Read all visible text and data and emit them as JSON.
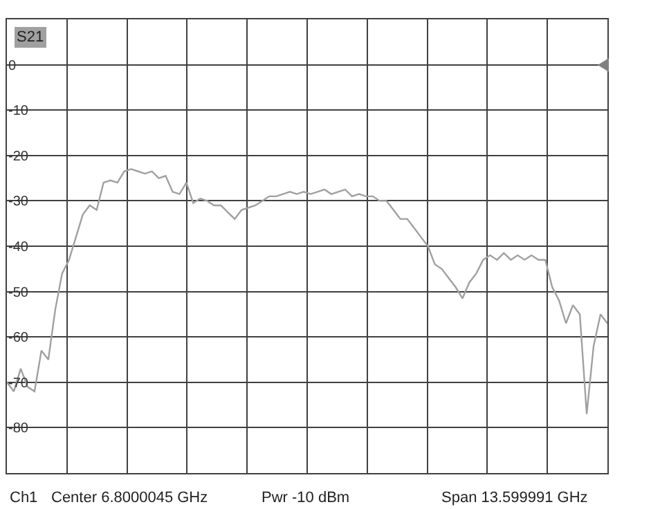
{
  "chart_data": {
    "type": "line",
    "categories": [
      null,
      null,
      null,
      null,
      null,
      null,
      null,
      null,
      null,
      null,
      null,
      null,
      null,
      null,
      null,
      null,
      null,
      null,
      null,
      null,
      null,
      null,
      null,
      null,
      null,
      null,
      null,
      null,
      null,
      null,
      null,
      null,
      null,
      null,
      null,
      null,
      null,
      null,
      null,
      null,
      null,
      null,
      null,
      null,
      null,
      null,
      null,
      null,
      null,
      null,
      null,
      null,
      null,
      null,
      null,
      null,
      null,
      null,
      null,
      null,
      null,
      null,
      null,
      null,
      null,
      null,
      null,
      null,
      null,
      null,
      null,
      null,
      null,
      null,
      null,
      null,
      null,
      null,
      null,
      null,
      null,
      null,
      null,
      null,
      null,
      null,
      null,
      null
    ],
    "series": [
      {
        "name": "S21",
        "color": "#a0a0a0",
        "values": [
          -70,
          -72,
          -67,
          -71,
          -72,
          -63,
          -65,
          -54,
          -46,
          -43,
          -38,
          -33,
          -31,
          -32,
          -26,
          -25.5,
          -26,
          -23.5,
          -23,
          -23.5,
          -24,
          -23.5,
          -25,
          -24.5,
          -28,
          -28.5,
          -26,
          -30.5,
          -29.5,
          -30,
          -31,
          -31,
          -32.5,
          -34,
          -32,
          -31.5,
          -31,
          -30,
          -29,
          -29,
          -28.5,
          -28,
          -28.5,
          -28,
          -28.5,
          -28,
          -27.5,
          -28.5,
          -28,
          -27.5,
          -29,
          -28.5,
          -29,
          -29,
          -30,
          -30,
          -32,
          -34,
          -34,
          -36,
          -38,
          -40,
          -44,
          -45,
          -47,
          -49,
          -51.5,
          -48,
          -46,
          -43,
          -42,
          -43,
          -41.5,
          -43,
          -42,
          -43,
          -42,
          -43,
          -43,
          -49,
          -52,
          -57,
          -53,
          -55,
          -77,
          -62,
          -55,
          -57
        ]
      }
    ],
    "ylim": [
      -90,
      10
    ],
    "yticks": [
      0,
      -10,
      -20,
      -30,
      -40,
      -50,
      -60,
      -70,
      -80
    ],
    "tick_labels": "y",
    "grid": true,
    "legend": false,
    "marker": "none",
    "line_style": "solid",
    "annotations": [
      "Ch1",
      "Center 6.8000045 GHz",
      "Pwr -10 dBm",
      "Span 13.599991 GHz"
    ]
  }
}
